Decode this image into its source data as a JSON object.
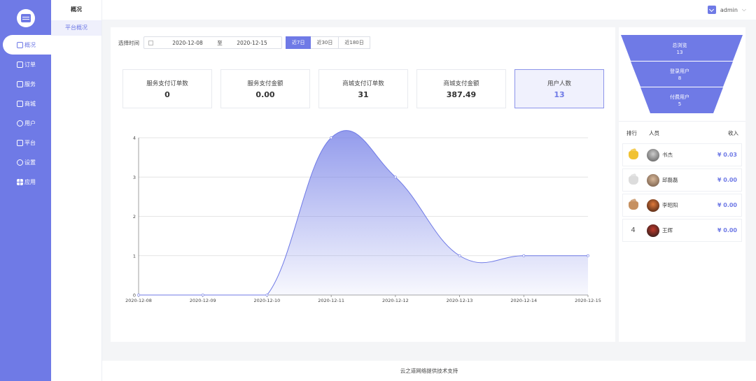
{
  "sidebar": {
    "items": [
      {
        "label": "概况",
        "icon": "dashboard-icon"
      },
      {
        "label": "订单",
        "icon": "order-icon"
      },
      {
        "label": "服务",
        "icon": "service-icon"
      },
      {
        "label": "商城",
        "icon": "shop-icon"
      },
      {
        "label": "用户",
        "icon": "user-icon"
      },
      {
        "label": "平台",
        "icon": "platform-icon"
      },
      {
        "label": "设置",
        "icon": "settings-icon"
      },
      {
        "label": "应用",
        "icon": "apps-icon"
      }
    ]
  },
  "subbar": {
    "title": "概况",
    "items": [
      {
        "label": "平台概况"
      }
    ]
  },
  "topbar": {
    "user": "admin"
  },
  "filter": {
    "label": "选择时间",
    "start": "2020-12-08",
    "separator": "至",
    "end": "2020-12-15",
    "ranges": [
      "近7日",
      "近30日",
      "近180日"
    ],
    "active_range": "近7日"
  },
  "stats": [
    {
      "label": "服务支付订单数",
      "value": "0"
    },
    {
      "label": "服务支付金额",
      "value": "0.00"
    },
    {
      "label": "商城支付订单数",
      "value": "31"
    },
    {
      "label": "商城支付金额",
      "value": "387.49"
    },
    {
      "label": "用户人数",
      "value": "13"
    }
  ],
  "chart_data": {
    "type": "area",
    "x": [
      "2020-12-08",
      "2020-12-09",
      "2020-12-10",
      "2020-12-11",
      "2020-12-12",
      "2020-12-13",
      "2020-12-14",
      "2020-12-15"
    ],
    "series": [
      {
        "values": [
          0,
          0,
          0,
          4,
          3,
          1,
          1,
          1
        ]
      }
    ],
    "ylim": [
      0,
      4
    ],
    "yticks": [
      "0",
      "1",
      "2",
      "3",
      "4"
    ],
    "grid": true,
    "color": "#6f7ae6"
  },
  "funnel": [
    {
      "label": "总浏览",
      "value": "13"
    },
    {
      "label": "登录用户",
      "value": "8"
    },
    {
      "label": "付费用户",
      "value": "5"
    }
  ],
  "ranking": {
    "headers": {
      "rank": "排行",
      "person": "人员",
      "income": "收入"
    },
    "rows": [
      {
        "rank": "1",
        "medal": "gold",
        "name": "书杰",
        "amount": "¥ 0.03"
      },
      {
        "rank": "2",
        "medal": "silver",
        "name": "邱磊磊",
        "amount": "¥ 0.00"
      },
      {
        "rank": "3",
        "medal": "bronze",
        "name": "李昭阳",
        "amount": "¥ 0.00"
      },
      {
        "rank": "4",
        "medal": "",
        "name": "王辉",
        "amount": "¥ 0.00"
      }
    ]
  },
  "footer": {
    "text": "云之道网络提供技术支持"
  },
  "colors": {
    "accent": "#6f7ae6",
    "gold": "#f1c232",
    "silver": "#d9d9d9",
    "bronze": "#c69060"
  }
}
